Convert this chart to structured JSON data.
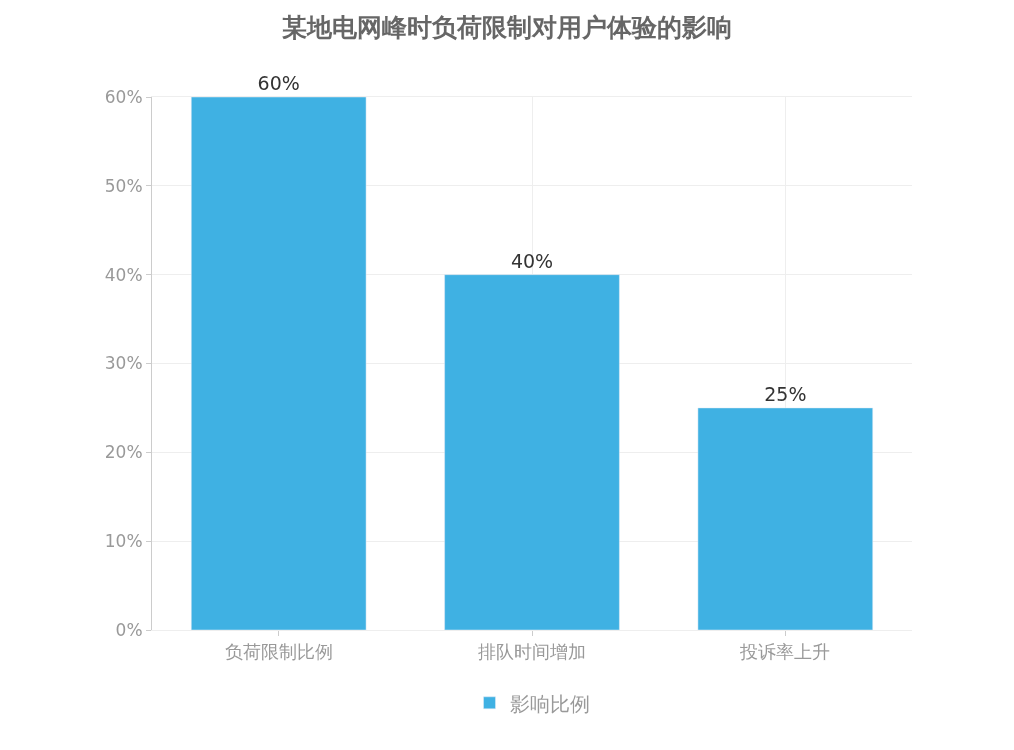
{
  "chart_data": {
    "type": "bar",
    "title": "某地电网峰时负荷限制对用户体验的影响",
    "categories": [
      "负荷限制比例",
      "排队时间增加",
      "投诉率上升"
    ],
    "series": [
      {
        "name": "影响比例",
        "color": "#3fb1e3",
        "values": [
          60,
          40,
          25
        ],
        "value_labels": [
          "60%",
          "40%",
          "25%"
        ]
      }
    ],
    "ylim": [
      0,
      60
    ],
    "yticks": [
      {
        "value": 0,
        "label": "0%"
      },
      {
        "value": 10,
        "label": "10%"
      },
      {
        "value": 20,
        "label": "20%"
      },
      {
        "value": 30,
        "label": "30%"
      },
      {
        "value": 40,
        "label": "40%"
      },
      {
        "value": 50,
        "label": "50%"
      },
      {
        "value": 60,
        "label": "60%"
      }
    ],
    "grid": true,
    "legend": "bottom"
  }
}
